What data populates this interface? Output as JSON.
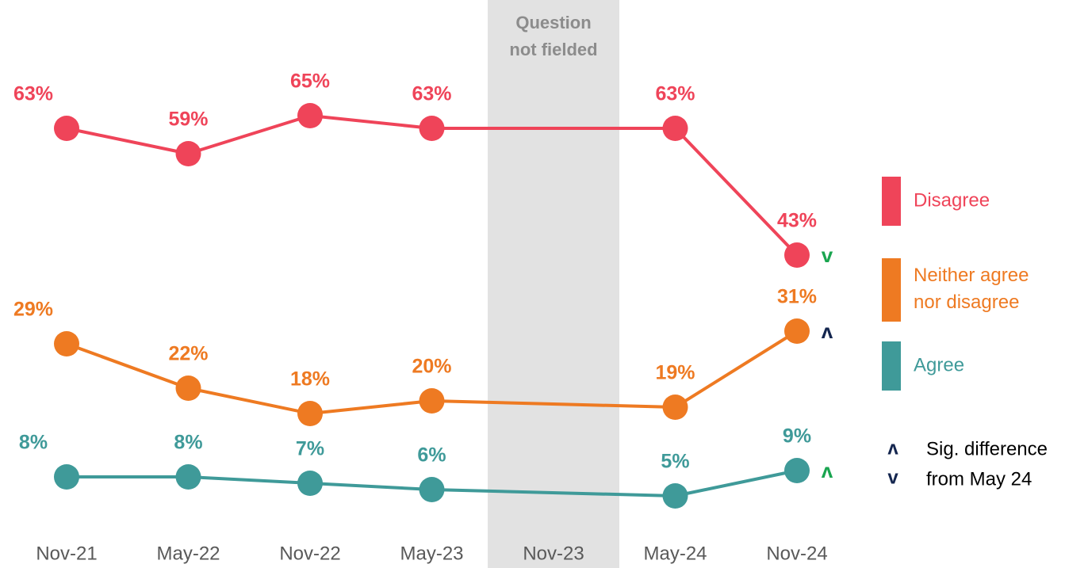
{
  "chart_data": {
    "type": "line",
    "categories": [
      "Nov-21",
      "May-22",
      "Nov-22",
      "May-23",
      "Nov-23",
      "May-24",
      "Nov-24"
    ],
    "series": [
      {
        "name": "Disagree",
        "color": "#ef4459",
        "values": [
          63,
          59,
          65,
          63,
          null,
          63,
          43
        ],
        "value_labels": [
          "63%",
          "59%",
          "65%",
          "63%",
          null,
          "63%",
          "43%"
        ],
        "significance_marker": "v",
        "significance_color": "#1aa550"
      },
      {
        "name": "Neither agree nor disagree",
        "color": "#ee7a22",
        "values": [
          29,
          22,
          18,
          20,
          null,
          19,
          31
        ],
        "value_labels": [
          "29%",
          "22%",
          "18%",
          "20%",
          null,
          "19%",
          "31%"
        ],
        "significance_marker": "ʌ",
        "significance_color": "#14264f"
      },
      {
        "name": "Agree",
        "color": "#3f9a99",
        "values": [
          8,
          8,
          7,
          6,
          null,
          5,
          9
        ],
        "value_labels": [
          "8%",
          "8%",
          "7%",
          "6%",
          null,
          "5%",
          "9%"
        ],
        "significance_marker": "ʌ",
        "significance_color": "#1aa550"
      }
    ],
    "ylim": [
      0,
      80
    ],
    "annotation": [
      "Question",
      "not fielded"
    ],
    "significance_legend": {
      "up": "ʌ",
      "down": "v",
      "color": "#14264f",
      "text": [
        "Sig. difference",
        "from May 24"
      ]
    }
  }
}
